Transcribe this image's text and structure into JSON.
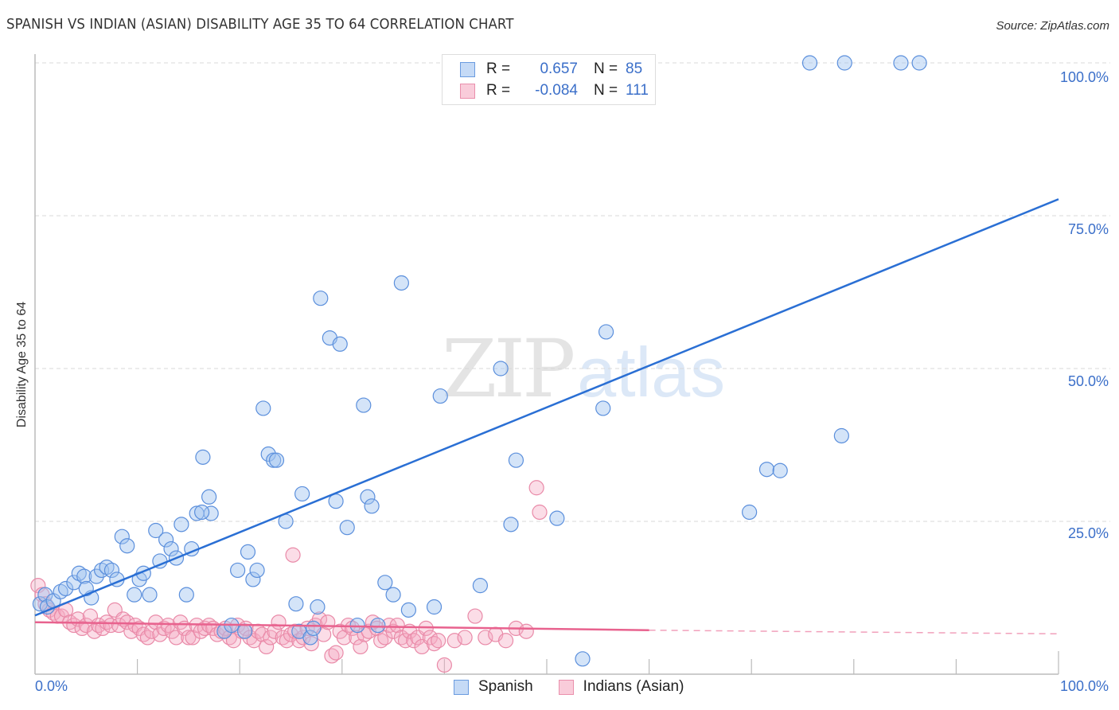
{
  "title": "SPANISH VS INDIAN (ASIAN) DISABILITY AGE 35 TO 64 CORRELATION CHART",
  "source": "Source: ZipAtlas.com",
  "watermark": {
    "part1": "ZIP",
    "part2": "atlas"
  },
  "legend": {
    "rows": [
      {
        "series": "Spanish",
        "r_label": "R =",
        "r_value": "0.657",
        "n_label": "N =",
        "n_value": "85",
        "color": "#a9c8f0",
        "border": "#6a9be0"
      },
      {
        "series": "Indians (Asian)",
        "r_label": "R =",
        "r_value": "-0.084",
        "n_label": "N =",
        "n_value": "111",
        "color": "#f7bfd0",
        "border": "#ea8fac"
      }
    ]
  },
  "bottom_legend": [
    {
      "label": "Spanish",
      "color": "#c5daf6",
      "border": "#6a9be0"
    },
    {
      "label": "Indians (Asian)",
      "color": "#f9ccda",
      "border": "#ea8fac"
    }
  ],
  "axes": {
    "x_min_label": "0.0%",
    "x_max_label": "100.0%",
    "y_ticks": [
      "100.0%",
      "75.0%",
      "50.0%",
      "25.0%"
    ]
  },
  "colors": {
    "spanish_fill": "rgba(160,196,240,0.45)",
    "spanish_stroke": "#5b8fdc",
    "spanish_line": "#2a6fd4",
    "indian_fill": "rgba(245,170,195,0.40)",
    "indian_stroke": "#e98aa8",
    "indian_line": "#e8628e",
    "tick_label": "#3b6fc9"
  },
  "chart_data": {
    "type": "scatter",
    "title": "SPANISH VS INDIAN (ASIAN) DISABILITY AGE 35 TO 64 CORRELATION CHART",
    "xlabel": "",
    "ylabel": "Disability Age 35 to 64",
    "xlim": [
      0,
      100
    ],
    "ylim": [
      0,
      100
    ],
    "x_tick_labels": [
      "0.0%",
      "100.0%"
    ],
    "y_tick_labels": [
      "25.0%",
      "50.0%",
      "75.0%",
      "100.0%"
    ],
    "grid": "horizontal dashed at 25/50/75/100",
    "legend_position": "top-center",
    "series": [
      {
        "name": "Spanish",
        "R": 0.657,
        "N": 85,
        "trendline": {
          "x": [
            0,
            100
          ],
          "y": [
            9.6,
            77.7
          ]
        },
        "points": [
          [
            0.5,
            11.5
          ],
          [
            1,
            13
          ],
          [
            1.2,
            11
          ],
          [
            1.8,
            12
          ],
          [
            2.5,
            13.5
          ],
          [
            3,
            14
          ],
          [
            3.8,
            15
          ],
          [
            4.3,
            16.5
          ],
          [
            4.8,
            16
          ],
          [
            5.5,
            12.5
          ],
          [
            6,
            16
          ],
          [
            6.5,
            17
          ],
          [
            7,
            17.5
          ],
          [
            7.5,
            17
          ],
          [
            8,
            15.5
          ],
          [
            8.5,
            22.5
          ],
          [
            9,
            21
          ],
          [
            9.7,
            13
          ],
          [
            10.2,
            15.5
          ],
          [
            10.6,
            16.5
          ],
          [
            11.2,
            13
          ],
          [
            11.8,
            23.5
          ],
          [
            12.2,
            18.5
          ],
          [
            12.8,
            22
          ],
          [
            13.3,
            20.5
          ],
          [
            13.8,
            19
          ],
          [
            14.3,
            24.5
          ],
          [
            14.8,
            13
          ],
          [
            15.3,
            20.5
          ],
          [
            15.8,
            26.3
          ],
          [
            16.4,
            35.5
          ],
          [
            17,
            29
          ],
          [
            17.2,
            26.3
          ],
          [
            18.5,
            7
          ],
          [
            19.2,
            8
          ],
          [
            19.8,
            17
          ],
          [
            20.5,
            7
          ],
          [
            20.8,
            20
          ],
          [
            21.3,
            15.5
          ],
          [
            21.7,
            17
          ],
          [
            22.3,
            43.5
          ],
          [
            22.8,
            36
          ],
          [
            23.3,
            35
          ],
          [
            23.6,
            35
          ],
          [
            24.5,
            25
          ],
          [
            25.5,
            11.5
          ],
          [
            25.8,
            7
          ],
          [
            26.1,
            29.5
          ],
          [
            26.9,
            6
          ],
          [
            27.2,
            7.5
          ],
          [
            27.6,
            11
          ],
          [
            27.9,
            61.5
          ],
          [
            28.8,
            55
          ],
          [
            29.4,
            28.3
          ],
          [
            29.8,
            54
          ],
          [
            30.5,
            24
          ],
          [
            31.5,
            8
          ],
          [
            32.1,
            44
          ],
          [
            32.5,
            29
          ],
          [
            32.9,
            27.5
          ],
          [
            33.5,
            8
          ],
          [
            34.2,
            15
          ],
          [
            35,
            13
          ],
          [
            35.8,
            64
          ],
          [
            36.5,
            10.5
          ],
          [
            39,
            11
          ],
          [
            39.6,
            45.5
          ],
          [
            43.5,
            14.5
          ],
          [
            45.5,
            50
          ],
          [
            46.5,
            24.5
          ],
          [
            47,
            35
          ],
          [
            51,
            25.5
          ],
          [
            53.5,
            2.5
          ],
          [
            55.5,
            43.5
          ],
          [
            55.8,
            56
          ],
          [
            69.8,
            26.5
          ],
          [
            71.5,
            33.5
          ],
          [
            72.8,
            33.3
          ],
          [
            78.8,
            39
          ],
          [
            75.7,
            100
          ],
          [
            79.1,
            100
          ],
          [
            84.6,
            100
          ],
          [
            86.4,
            100
          ],
          [
            16.3,
            26.5
          ],
          [
            5,
            14
          ]
        ]
      },
      {
        "name": "Indians (Asian)",
        "R": -0.084,
        "N": 111,
        "trendline": {
          "x": [
            0,
            60,
            100
          ],
          "y": [
            8.5,
            7.2,
            6.6
          ],
          "solid_until_x": 60
        },
        "points": [
          [
            0.3,
            14.5
          ],
          [
            0.7,
            13
          ],
          [
            1,
            11.5
          ],
          [
            1.4,
            10.5
          ],
          [
            1.8,
            10
          ],
          [
            2.2,
            9.5
          ],
          [
            2.6,
            9.5
          ],
          [
            3,
            10.5
          ],
          [
            3.4,
            8.5
          ],
          [
            3.8,
            8
          ],
          [
            4.2,
            9
          ],
          [
            4.6,
            7.5
          ],
          [
            5,
            8
          ],
          [
            5.4,
            9.5
          ],
          [
            5.8,
            7
          ],
          [
            6.2,
            8
          ],
          [
            6.6,
            7.5
          ],
          [
            7,
            8.5
          ],
          [
            7.4,
            8
          ],
          [
            7.8,
            10.5
          ],
          [
            8.2,
            8
          ],
          [
            8.6,
            9
          ],
          [
            9,
            8.5
          ],
          [
            9.4,
            7
          ],
          [
            9.8,
            8
          ],
          [
            10.2,
            7.5
          ],
          [
            10.6,
            6.5
          ],
          [
            11,
            6
          ],
          [
            11.4,
            7
          ],
          [
            11.8,
            8.5
          ],
          [
            12.2,
            6.5
          ],
          [
            12.6,
            7.5
          ],
          [
            13,
            8
          ],
          [
            13.4,
            7
          ],
          [
            13.8,
            6
          ],
          [
            14.2,
            8.5
          ],
          [
            14.6,
            7.5
          ],
          [
            15,
            6
          ],
          [
            15.4,
            6
          ],
          [
            15.8,
            8
          ],
          [
            16.2,
            7
          ],
          [
            16.6,
            7.5
          ],
          [
            17,
            8
          ],
          [
            17.4,
            7.5
          ],
          [
            17.8,
            6.5
          ],
          [
            18.2,
            7
          ],
          [
            18.6,
            7.5
          ],
          [
            19,
            6
          ],
          [
            19.4,
            5.5
          ],
          [
            19.8,
            8
          ],
          [
            20.2,
            7
          ],
          [
            20.6,
            7.5
          ],
          [
            21,
            6
          ],
          [
            21.4,
            5.5
          ],
          [
            21.8,
            7
          ],
          [
            22.2,
            6.5
          ],
          [
            22.6,
            4.5
          ],
          [
            23,
            6
          ],
          [
            23.4,
            7
          ],
          [
            23.8,
            8.5
          ],
          [
            24.2,
            6
          ],
          [
            24.6,
            5.5
          ],
          [
            25,
            6.5
          ],
          [
            25.4,
            7
          ],
          [
            25.8,
            5.5
          ],
          [
            25.2,
            19.5
          ],
          [
            26.2,
            6
          ],
          [
            26.6,
            7.5
          ],
          [
            27,
            5
          ],
          [
            27.4,
            8
          ],
          [
            27.8,
            9
          ],
          [
            28.2,
            6.5
          ],
          [
            28.6,
            8.5
          ],
          [
            29,
            3
          ],
          [
            29.4,
            3.5
          ],
          [
            29.8,
            7
          ],
          [
            30.2,
            6
          ],
          [
            30.6,
            8
          ],
          [
            31,
            7.5
          ],
          [
            31.4,
            6
          ],
          [
            31.8,
            4.5
          ],
          [
            32.2,
            6.5
          ],
          [
            32.6,
            7
          ],
          [
            33,
            8.5
          ],
          [
            33.4,
            7.5
          ],
          [
            33.8,
            5.5
          ],
          [
            34.2,
            6
          ],
          [
            34.6,
            8
          ],
          [
            35,
            7
          ],
          [
            35.4,
            8
          ],
          [
            35.8,
            6
          ],
          [
            36.2,
            5.5
          ],
          [
            36.6,
            7
          ],
          [
            37,
            5.5
          ],
          [
            37.4,
            6
          ],
          [
            37.8,
            4.5
          ],
          [
            38.2,
            7.5
          ],
          [
            38.6,
            6
          ],
          [
            39,
            5
          ],
          [
            39.4,
            5.5
          ],
          [
            40,
            1.5
          ],
          [
            41,
            5.5
          ],
          [
            42,
            6
          ],
          [
            43,
            9.5
          ],
          [
            44,
            6
          ],
          [
            45,
            6.5
          ],
          [
            46,
            5.5
          ],
          [
            47,
            7.5
          ],
          [
            48,
            7
          ],
          [
            49,
            30.5
          ],
          [
            49.3,
            26.5
          ]
        ]
      }
    ]
  }
}
